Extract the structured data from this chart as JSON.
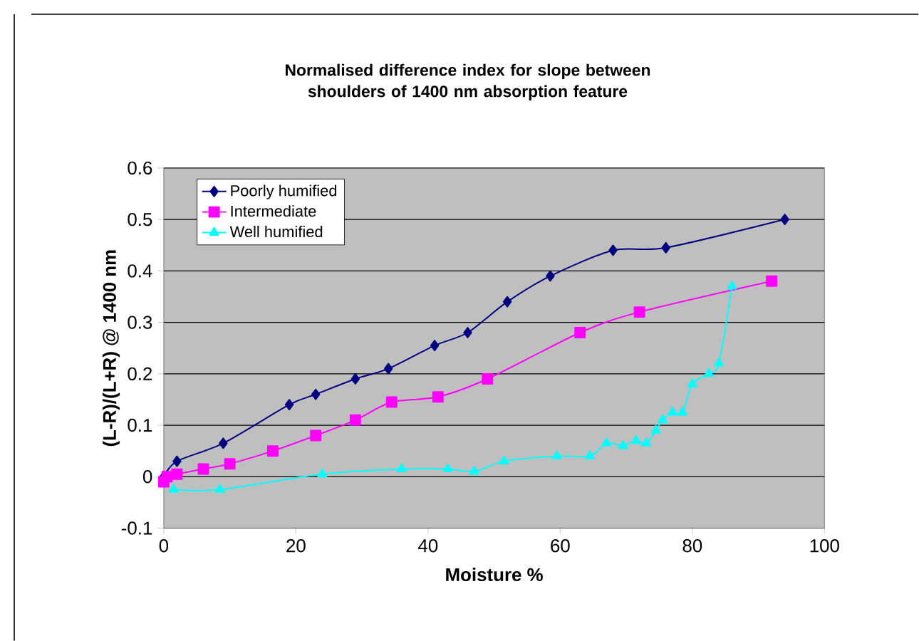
{
  "chart_data": {
    "type": "line",
    "title": "Normalised difference index for slope between shoulders of 1400 nm absorption feature",
    "xlabel": "Moisture %",
    "ylabel": "(L-R)/(L+R) @ 1400 nm",
    "xlim": [
      0,
      100
    ],
    "xticks": [
      0,
      20,
      40,
      60,
      80,
      100
    ],
    "ylim": [
      -0.1,
      0.6
    ],
    "yticks": [
      -0.1,
      0,
      0.1,
      0.2,
      0.3,
      0.4,
      0.5,
      0.6
    ],
    "grid": "y",
    "legend": "top left",
    "series": [
      {
        "name": "Poorly humified",
        "color": "#000080",
        "marker": "diamond",
        "x": [
          0,
          2,
          9,
          19,
          23,
          29,
          34,
          41,
          46,
          52,
          58.5,
          68,
          76,
          94
        ],
        "values": [
          0,
          0.03,
          0.065,
          0.14,
          0.16,
          0.19,
          0.21,
          0.255,
          0.28,
          0.34,
          0.39,
          0.44,
          0.445,
          0.5
        ]
      },
      {
        "name": "Intermediate",
        "color": "#ff00ff",
        "marker": "square",
        "x": [
          0,
          0.5,
          2,
          6,
          10,
          16.5,
          23,
          29,
          34.5,
          41.5,
          49,
          63,
          72,
          92
        ],
        "values": [
          -0.01,
          0,
          0.005,
          0.015,
          0.025,
          0.05,
          0.08,
          0.11,
          0.145,
          0.155,
          0.19,
          0.28,
          0.32,
          0.38
        ]
      },
      {
        "name": "Well humified",
        "color": "#00ffff",
        "marker": "triangle",
        "x": [
          1.5,
          8.5,
          24,
          36,
          43,
          47,
          51.5,
          59.5,
          64.5,
          67,
          69.5,
          71.5,
          73,
          74.5,
          75.5,
          77,
          78.5,
          80,
          82.5,
          84,
          86
        ],
        "values": [
          -0.025,
          -0.025,
          0.005,
          0.015,
          0.015,
          0.01,
          0.03,
          0.04,
          0.04,
          0.065,
          0.06,
          0.07,
          0.065,
          0.09,
          0.11,
          0.125,
          0.125,
          0.18,
          0.2,
          0.22,
          0.37
        ]
      }
    ]
  }
}
